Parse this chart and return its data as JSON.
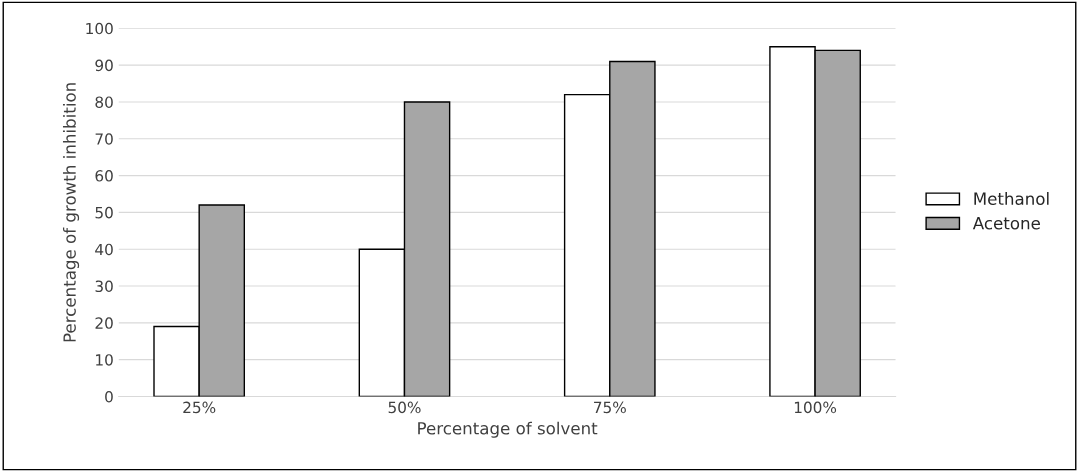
{
  "chart_data": {
    "type": "bar",
    "xlabel": "Percentage of solvent",
    "ylabel": "Percentage of growth inhibition",
    "categories": [
      "25%",
      "50%",
      "75%",
      "100%"
    ],
    "series": [
      {
        "name": "Methanol",
        "color": "#ffffff",
        "values": [
          19,
          40,
          82,
          95
        ]
      },
      {
        "name": "Acetone",
        "color": "#a6a6a6",
        "values": [
          52,
          80,
          91,
          94
        ]
      }
    ],
    "ylim": [
      0,
      100
    ],
    "yticks": [
      0,
      10,
      20,
      30,
      40,
      50,
      60,
      70,
      80,
      90,
      100
    ],
    "grid": "y",
    "legend": "right"
  }
}
